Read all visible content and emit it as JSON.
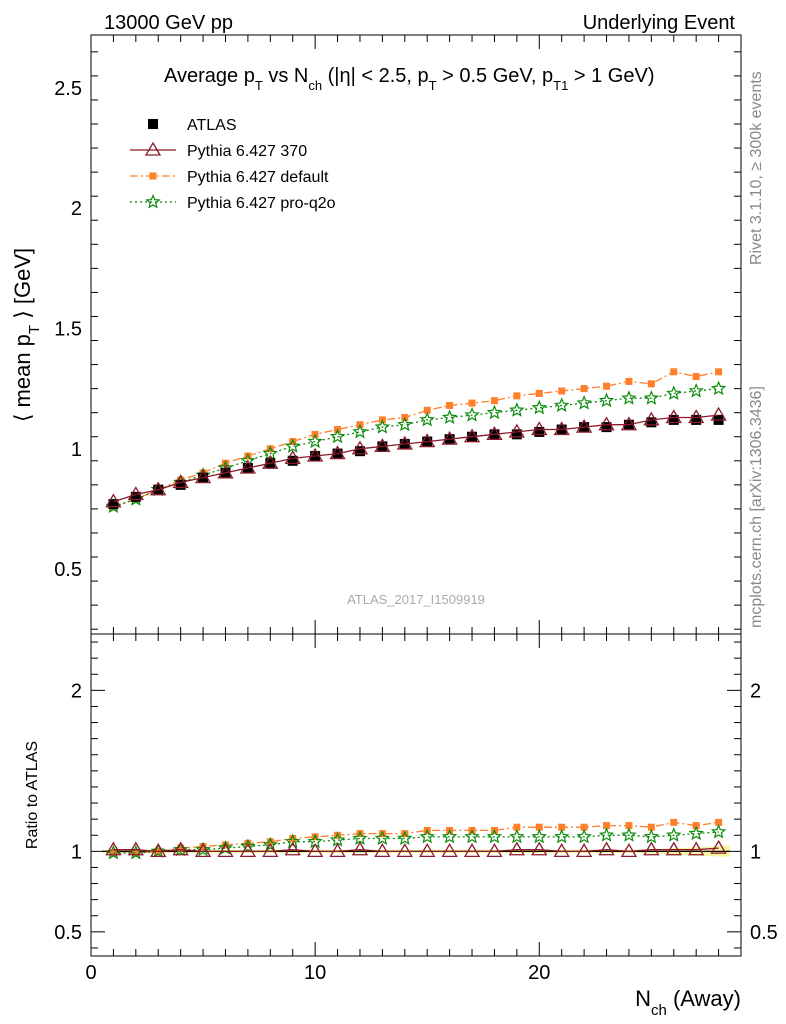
{
  "header": {
    "left": "13000 GeV pp",
    "right": "Underlying Event"
  },
  "side_labels": {
    "rivet": "Rivet 3.1.10, ≥ 300k events",
    "mcplots": "mcplots.cern.ch [arXiv:1306.3436]"
  },
  "watermark": "ATLAS_2017_I1509919",
  "colors": {
    "atlas": "#000000",
    "p370": "#8b1a2a",
    "default": "#ff7f2a",
    "proq2o": "#0a8a0a",
    "band": "#f5f5a0"
  },
  "chart_data": [
    {
      "type": "scatter",
      "title_parts": [
        "Average p",
        "T",
        " vs N",
        "ch",
        " (|η| < 2.5, p",
        "T",
        " > 0.5 GeV, p",
        "T1",
        " > 1 GeV)"
      ],
      "ylabel_parts": [
        "⟨ mean p",
        "T",
        " ⟩ [GeV]"
      ],
      "ylim": [
        0.23,
        2.72
      ],
      "xlim": [
        0,
        29
      ],
      "yticks": [
        0.5,
        1,
        1.5,
        2,
        2.5
      ],
      "ytick_labels": [
        "0.5",
        "1",
        "1.5",
        "2",
        "2.5"
      ],
      "x": [
        1,
        2,
        3,
        4,
        5,
        6,
        7,
        8,
        9,
        10,
        11,
        12,
        13,
        14,
        15,
        16,
        17,
        18,
        19,
        20,
        21,
        22,
        23,
        24,
        25,
        26,
        27,
        28
      ],
      "series": [
        {
          "name": "ATLAS",
          "key": "atlas",
          "values": [
            0.77,
            0.8,
            0.83,
            0.85,
            0.88,
            0.9,
            0.92,
            0.94,
            0.95,
            0.97,
            0.98,
            0.99,
            1.01,
            1.02,
            1.03,
            1.04,
            1.05,
            1.06,
            1.06,
            1.07,
            1.08,
            1.09,
            1.09,
            1.1,
            1.11,
            1.12,
            1.12,
            1.12
          ]
        },
        {
          "name": "Pythia 6.427 370",
          "key": "p370",
          "values": [
            0.78,
            0.81,
            0.83,
            0.86,
            0.88,
            0.9,
            0.92,
            0.94,
            0.96,
            0.97,
            0.98,
            1.0,
            1.01,
            1.02,
            1.03,
            1.04,
            1.05,
            1.06,
            1.07,
            1.08,
            1.08,
            1.09,
            1.1,
            1.1,
            1.12,
            1.13,
            1.13,
            1.14
          ]
        },
        {
          "name": "Pythia 6.427 default",
          "key": "default",
          "values": [
            0.76,
            0.79,
            0.83,
            0.87,
            0.9,
            0.94,
            0.97,
            1.0,
            1.03,
            1.06,
            1.08,
            1.1,
            1.12,
            1.13,
            1.16,
            1.18,
            1.19,
            1.2,
            1.22,
            1.23,
            1.24,
            1.25,
            1.26,
            1.28,
            1.27,
            1.32,
            1.3,
            1.32
          ]
        },
        {
          "name": "Pythia 6.427 pro-q2o",
          "key": "proq2o",
          "values": [
            0.76,
            0.79,
            0.83,
            0.86,
            0.89,
            0.92,
            0.95,
            0.98,
            1.01,
            1.03,
            1.05,
            1.07,
            1.09,
            1.1,
            1.12,
            1.13,
            1.14,
            1.15,
            1.16,
            1.17,
            1.18,
            1.19,
            1.2,
            1.21,
            1.21,
            1.23,
            1.24,
            1.25
          ]
        }
      ]
    },
    {
      "type": "scatter",
      "ylabel": "Ratio to ATLAS",
      "xlabel_parts": [
        "N",
        "ch",
        " (Away)"
      ],
      "ylim": [
        0.35,
        2.35
      ],
      "xlim": [
        0,
        29
      ],
      "yticks": [
        0.5,
        1,
        2
      ],
      "ytick_labels": [
        "0.5",
        "1",
        "2"
      ],
      "xticks": [
        0,
        10,
        20
      ],
      "xtick_labels": [
        "0",
        "10",
        "20"
      ],
      "x": [
        1,
        2,
        3,
        4,
        5,
        6,
        7,
        8,
        9,
        10,
        11,
        12,
        13,
        14,
        15,
        16,
        17,
        18,
        19,
        20,
        21,
        22,
        23,
        24,
        25,
        26,
        27,
        28
      ],
      "series": [
        {
          "name": "Pythia 6.427 370",
          "key": "p370",
          "values": [
            1.01,
            1.01,
            1.0,
            1.01,
            1.0,
            1.0,
            1.0,
            1.0,
            1.01,
            1.0,
            1.0,
            1.01,
            1.0,
            1.0,
            1.0,
            1.0,
            1.0,
            1.0,
            1.01,
            1.01,
            1.0,
            1.0,
            1.01,
            1.0,
            1.01,
            1.01,
            1.01,
            1.02
          ]
        },
        {
          "name": "Pythia 6.427 default",
          "key": "default",
          "values": [
            0.99,
            0.99,
            1.0,
            1.02,
            1.03,
            1.04,
            1.05,
            1.06,
            1.08,
            1.09,
            1.1,
            1.11,
            1.11,
            1.11,
            1.13,
            1.13,
            1.13,
            1.13,
            1.15,
            1.15,
            1.15,
            1.15,
            1.16,
            1.16,
            1.15,
            1.18,
            1.16,
            1.18
          ]
        },
        {
          "name": "Pythia 6.427 pro-q2o",
          "key": "proq2o",
          "values": [
            0.99,
            0.99,
            1.0,
            1.01,
            1.01,
            1.02,
            1.03,
            1.04,
            1.06,
            1.06,
            1.07,
            1.08,
            1.08,
            1.08,
            1.09,
            1.09,
            1.09,
            1.09,
            1.09,
            1.09,
            1.09,
            1.09,
            1.1,
            1.1,
            1.09,
            1.1,
            1.11,
            1.12
          ]
        }
      ]
    }
  ]
}
